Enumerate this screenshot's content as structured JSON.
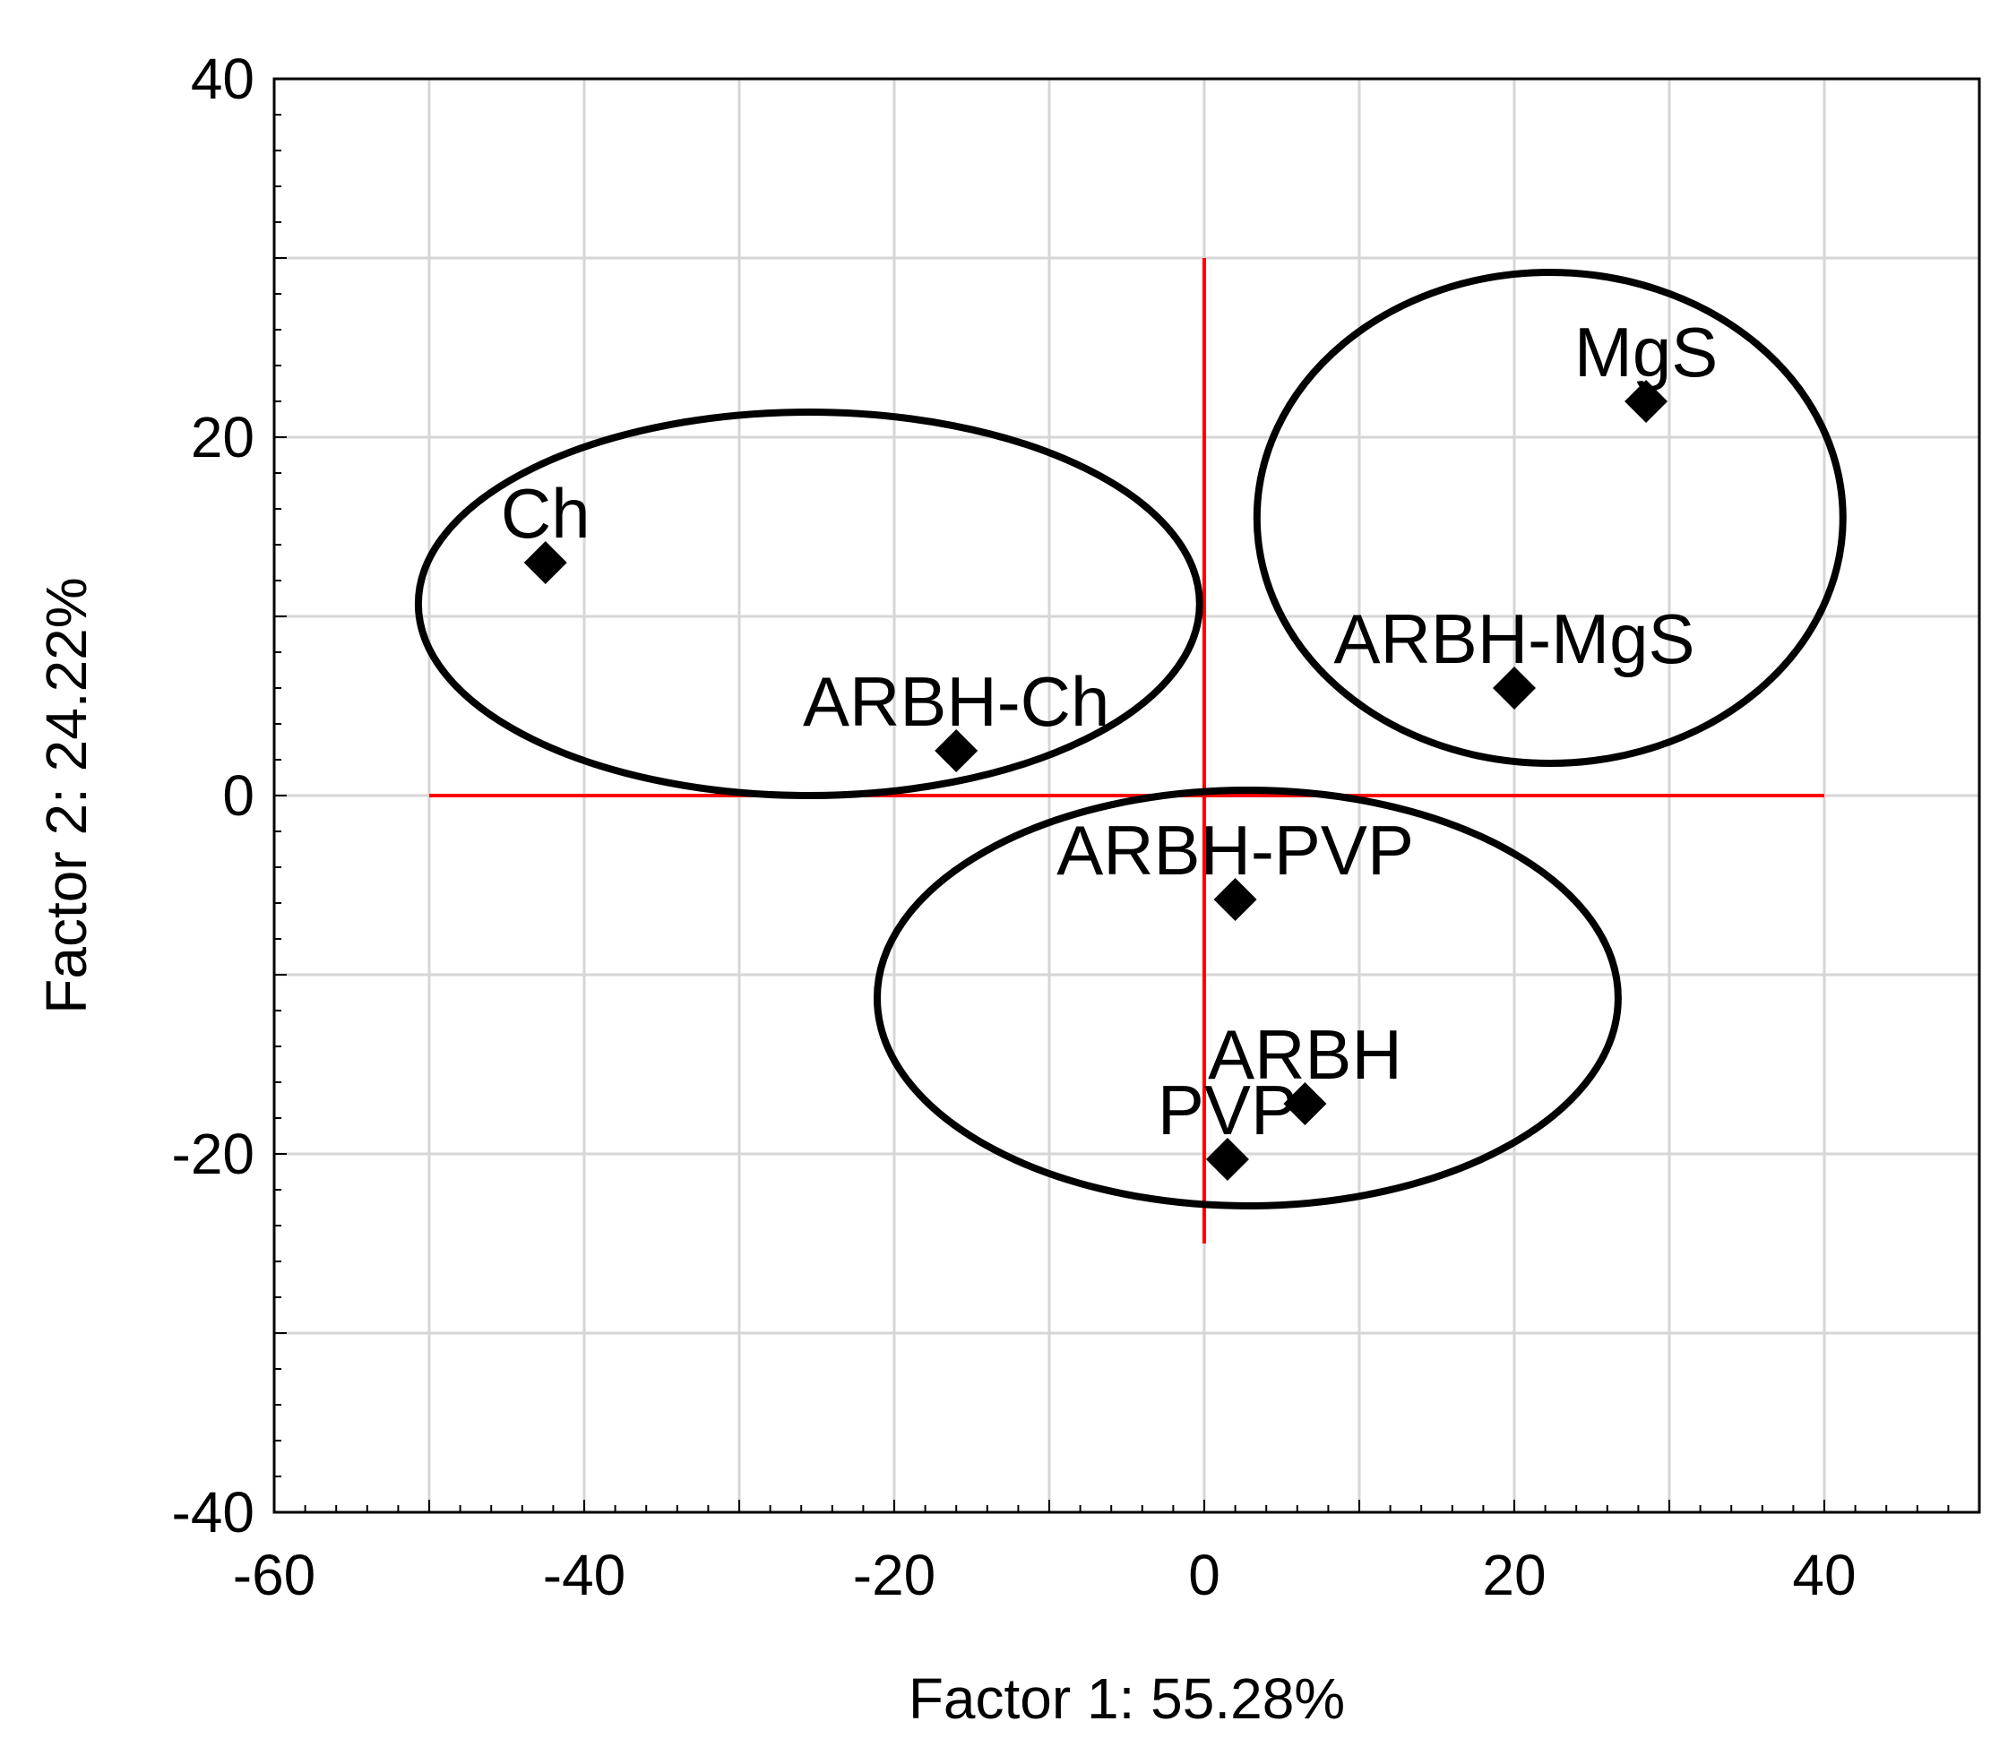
{
  "chart_data": {
    "type": "scatter",
    "xlabel": "Factor 1: 55.28%",
    "ylabel": "Factor 2: 24.22%",
    "xlim": [
      -60,
      50
    ],
    "ylim": [
      -40,
      40
    ],
    "xticks": [
      -60,
      -40,
      -20,
      0,
      20,
      40
    ],
    "yticks": [
      -40,
      -20,
      0,
      20,
      40
    ],
    "x_gridlines": [
      -50,
      -40,
      -30,
      -20,
      -10,
      0,
      10,
      20,
      30,
      40
    ],
    "y_gridlines": [
      -30,
      -20,
      -10,
      0,
      10,
      20,
      30
    ],
    "grid": true,
    "reference_lines": {
      "horizontal": {
        "y": 0,
        "x_range": [
          -50,
          40
        ],
        "color": "#ff0000"
      },
      "vertical": {
        "x": 0,
        "y_range": [
          -25,
          30
        ],
        "color": "#ff0000"
      }
    },
    "points": [
      {
        "label": "Ch",
        "x": -42.5,
        "y": 13
      },
      {
        "label": "ARBH-Ch",
        "x": -16,
        "y": 2.5
      },
      {
        "label": "MgS",
        "x": 28.5,
        "y": 22
      },
      {
        "label": "ARBH-MgS",
        "x": 20,
        "y": 6
      },
      {
        "label": "ARBH-PVP",
        "x": 2,
        "y": -5.8
      },
      {
        "label": "ARBH",
        "x": 6.5,
        "y": -17.2
      },
      {
        "label": "PVP",
        "x": 1.5,
        "y": -20.3
      }
    ],
    "clusters": [
      {
        "members": [
          "Ch",
          "ARBH-Ch"
        ],
        "cx": -25.5,
        "cy": 10.7,
        "rx": 25.2,
        "ry": 10.7
      },
      {
        "members": [
          "MgS",
          "ARBH-MgS"
        ],
        "cx": 22.3,
        "cy": 15.5,
        "rx": 18.9,
        "ry": 13.7
      },
      {
        "members": [
          "ARBH-PVP",
          "ARBH",
          "PVP"
        ],
        "cx": 2.8,
        "cy": -11.3,
        "rx": 23.9,
        "ry": 11.6
      }
    ],
    "marker": "diamond",
    "colors": {
      "marker": "#000000",
      "reference": "#ff0000",
      "grid": "#d6d6d6",
      "ellipse": "#000000"
    }
  }
}
